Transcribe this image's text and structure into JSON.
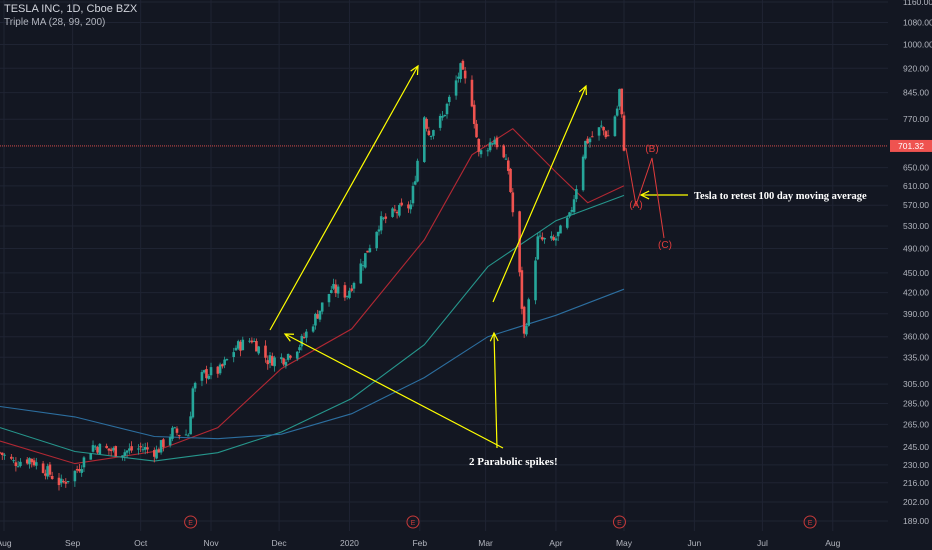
{
  "header": {
    "symbol_line": "TESLA INC, 1D, Cboe BZX",
    "indicator_line": "Triple MA (28, 99, 200)"
  },
  "colors": {
    "background": "#131722",
    "grid": "#1f2433",
    "axis_text": "#b2b5be",
    "up_candle": "#26a69a",
    "down_candle": "#ef5350",
    "ma28": "#b22833",
    "ma99": "#26968c",
    "ma200": "#2c6e9f",
    "annotation": "#ffff00",
    "wave_labels": "#e03c3c",
    "price_line": "#ef5350",
    "price_tag_bg": "#ef5350",
    "earnings_marker": "#c63a3a"
  },
  "chart_data": {
    "type": "candlestick",
    "title": "TESLA INC, 1D, Cboe BZX",
    "indicator": "Triple MA (28, 99, 200)",
    "y_scale": "log",
    "ylim": [
      180,
      1190
    ],
    "y_ticks": [
      "1160.00",
      "1080.00",
      "1000.00",
      "920.00",
      "845.00",
      "770.00",
      "701.32",
      "650.00",
      "610.00",
      "570.00",
      "530.00",
      "490.00",
      "450.00",
      "420.00",
      "390.00",
      "360.00",
      "335.00",
      "305.00",
      "285.00",
      "265.00",
      "245.00",
      "230.00",
      "216.00",
      "202.00",
      "189.00"
    ],
    "x_ticks": [
      "Aug",
      "Sep",
      "Oct",
      "Nov",
      "Dec",
      "2020",
      "Feb",
      "Mar",
      "Apr",
      "May",
      "Jun",
      "Jul",
      "Aug"
    ],
    "last_price": "701.32",
    "earnings_markers": [
      "Oct 23 2019",
      "Jan 29 2020",
      "Apr 29 2020",
      "Jul 22 2020"
    ],
    "price_path": [
      [
        "2019-07-31",
        240
      ],
      [
        "2019-08-06",
        232
      ],
      [
        "2019-08-13",
        235
      ],
      [
        "2019-08-20",
        226
      ],
      [
        "2019-08-27",
        215
      ],
      [
        "2019-09-03",
        226
      ],
      [
        "2019-09-10",
        246
      ],
      [
        "2019-09-17",
        242
      ],
      [
        "2019-09-24",
        241
      ],
      [
        "2019-10-01",
        244
      ],
      [
        "2019-10-08",
        241
      ],
      [
        "2019-10-15",
        258
      ],
      [
        "2019-10-22",
        256
      ],
      [
        "2019-10-24",
        300
      ],
      [
        "2019-10-29",
        316
      ],
      [
        "2019-11-05",
        320
      ],
      [
        "2019-11-12",
        347
      ],
      [
        "2019-11-19",
        357
      ],
      [
        "2019-11-26",
        332
      ],
      [
        "2019-12-03",
        334
      ],
      [
        "2019-12-10",
        350
      ],
      [
        "2019-12-17",
        385
      ],
      [
        "2019-12-24",
        425
      ],
      [
        "2019-12-31",
        418
      ],
      [
        "2020-01-07",
        470
      ],
      [
        "2020-01-14",
        535
      ],
      [
        "2020-01-21",
        555
      ],
      [
        "2020-01-28",
        570
      ],
      [
        "2020-02-03",
        780
      ],
      [
        "2020-02-05",
        734
      ],
      [
        "2020-02-11",
        774
      ],
      [
        "2020-02-19",
        917
      ],
      [
        "2020-02-24",
        820
      ],
      [
        "2020-02-27",
        680
      ],
      [
        "2020-03-05",
        720
      ],
      [
        "2020-03-11",
        645
      ],
      [
        "2020-03-16",
        445
      ],
      [
        "2020-03-18",
        361
      ],
      [
        "2020-03-24",
        505
      ],
      [
        "2020-03-31",
        502
      ],
      [
        "2020-04-07",
        545
      ],
      [
        "2020-04-14",
        710
      ],
      [
        "2020-04-21",
        747
      ],
      [
        "2020-04-24",
        725
      ],
      [
        "2020-04-28",
        800
      ],
      [
        "2020-04-29",
        850
      ],
      [
        "2020-05-01",
        701
      ]
    ],
    "moving_averages": [
      {
        "period": 28,
        "points": [
          [
            "2019-07-31",
            250
          ],
          [
            "2019-09-02",
            231
          ],
          [
            "2019-10-07",
            241
          ],
          [
            "2019-11-04",
            262
          ],
          [
            "2019-12-02",
            322
          ],
          [
            "2020-01-02",
            370
          ],
          [
            "2020-02-03",
            505
          ],
          [
            "2020-02-24",
            680
          ],
          [
            "2020-03-13",
            745
          ],
          [
            "2020-04-01",
            640
          ],
          [
            "2020-04-15",
            575
          ],
          [
            "2020-05-01",
            610
          ]
        ]
      },
      {
        "period": 99,
        "points": [
          [
            "2019-07-31",
            262
          ],
          [
            "2019-09-02",
            241
          ],
          [
            "2019-10-07",
            233
          ],
          [
            "2019-11-04",
            240
          ],
          [
            "2019-12-02",
            258
          ],
          [
            "2020-01-02",
            290
          ],
          [
            "2020-02-03",
            350
          ],
          [
            "2020-03-02",
            460
          ],
          [
            "2020-04-01",
            540
          ],
          [
            "2020-05-01",
            590
          ]
        ]
      },
      {
        "period": 200,
        "points": [
          [
            "2019-07-31",
            282
          ],
          [
            "2019-09-02",
            272
          ],
          [
            "2019-10-07",
            254
          ],
          [
            "2019-11-04",
            252
          ],
          [
            "2019-12-02",
            256
          ],
          [
            "2020-01-02",
            275
          ],
          [
            "2020-02-03",
            312
          ],
          [
            "2020-03-02",
            360
          ],
          [
            "2020-04-01",
            388
          ],
          [
            "2020-05-01",
            425
          ]
        ]
      }
    ],
    "annotations": {
      "retest_text": "Tesla to retest 100 day moving average",
      "spikes_text": "2 Parabolic spikes!",
      "wave_a": "(A)",
      "wave_b": "(B)",
      "wave_c": "(C)"
    }
  }
}
